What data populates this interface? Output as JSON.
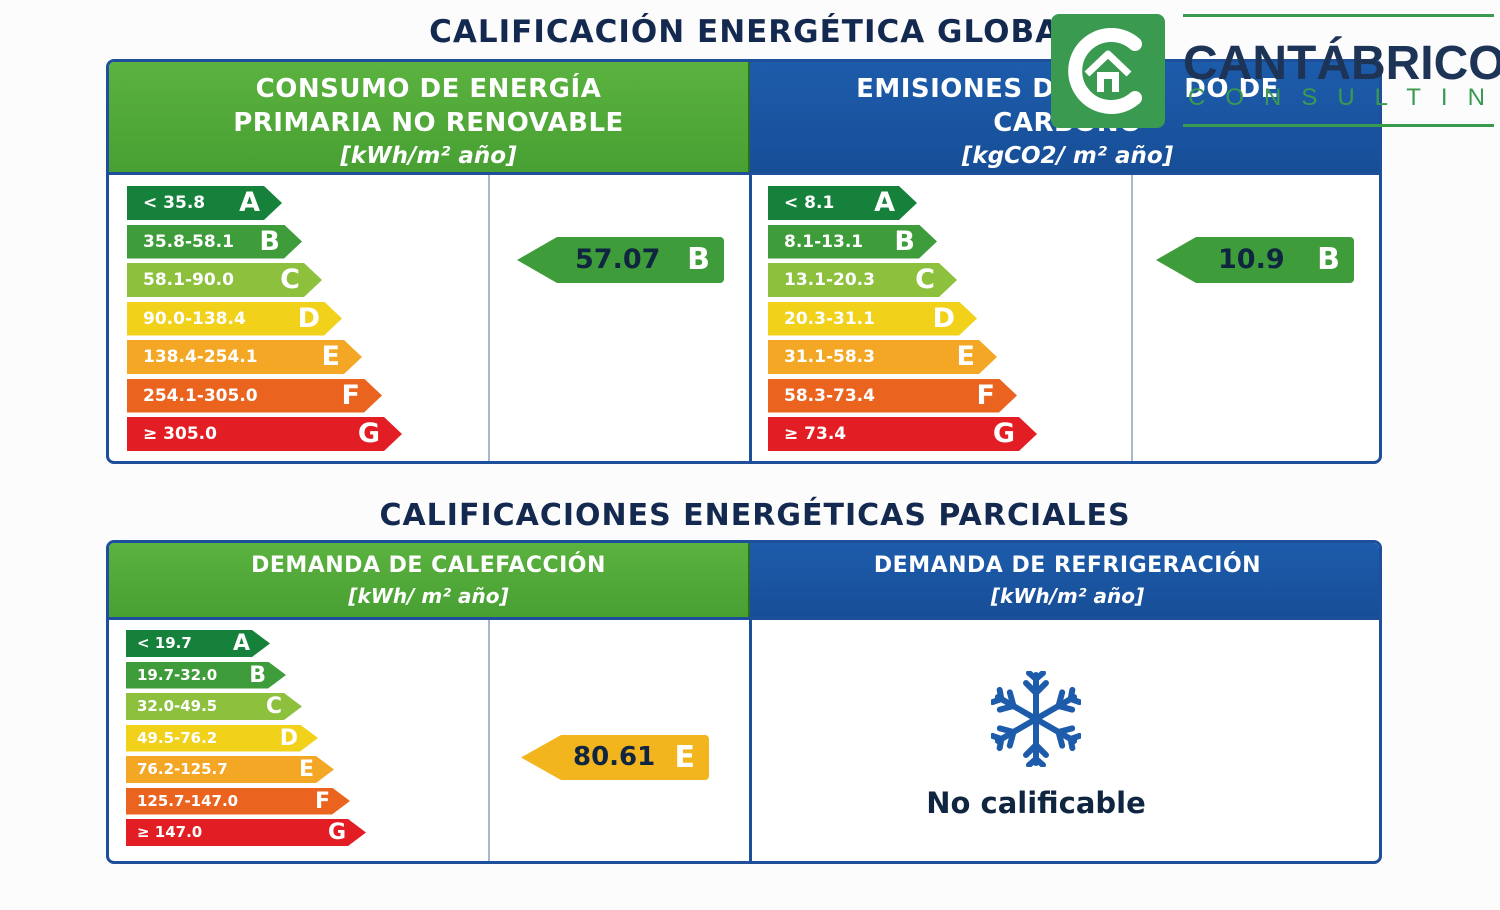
{
  "global": {
    "title": "CALIFICACIÓN ENERGÉTICA GLOBAL",
    "consumo": {
      "line1": "CONSUMO DE ENERGÍA",
      "line2": "PRIMARIA NO RENOVABLE",
      "unit": "[kWh/m² año]",
      "scale": [
        {
          "range": "< 35.8",
          "letter": "A"
        },
        {
          "range": "35.8-58.1",
          "letter": "B"
        },
        {
          "range": "58.1-90.0",
          "letter": "C"
        },
        {
          "range": "90.0-138.4",
          "letter": "D"
        },
        {
          "range": "138.4-254.1",
          "letter": "E"
        },
        {
          "range": "254.1-305.0",
          "letter": "F"
        },
        {
          "range": "≥ 305.0",
          "letter": "G"
        }
      ],
      "value": "57.07",
      "rating": "B"
    },
    "emisiones": {
      "line1": "EMISIONES D",
      "line1b": "DO DE",
      "line2": "CARBONO",
      "unit": "[kgCO2/ m² año]",
      "scale": [
        {
          "range": "< 8.1",
          "letter": "A"
        },
        {
          "range": "8.1-13.1",
          "letter": "B"
        },
        {
          "range": "13.1-20.3",
          "letter": "C"
        },
        {
          "range": "20.3-31.1",
          "letter": "D"
        },
        {
          "range": "31.1-58.3",
          "letter": "E"
        },
        {
          "range": "58.3-73.4",
          "letter": "F"
        },
        {
          "range": "≥ 73.4",
          "letter": "G"
        }
      ],
      "value": "10.9",
      "rating": "B"
    }
  },
  "partial": {
    "title": "CALIFICACIONES ENERGÉTICAS PARCIALES",
    "calefaccion": {
      "line1": "DEMANDA DE CALEFACCIÓN",
      "unit": "[kWh/ m² año]",
      "scale": [
        {
          "range": "< 19.7",
          "letter": "A"
        },
        {
          "range": "19.7-32.0",
          "letter": "B"
        },
        {
          "range": "32.0-49.5",
          "letter": "C"
        },
        {
          "range": "49.5-76.2",
          "letter": "D"
        },
        {
          "range": "76.2-125.7",
          "letter": "E"
        },
        {
          "range": "125.7-147.0",
          "letter": "F"
        },
        {
          "range": "≥ 147.0",
          "letter": "G"
        }
      ],
      "value": "80.61",
      "rating": "E"
    },
    "refrigeracion": {
      "line1": "DEMANDA DE REFRIGERACIÓN",
      "unit": "[kWh/m² año]",
      "icon": "snowflake-icon",
      "status": "No calificable"
    }
  },
  "logo": {
    "name": "CANTÁBRICO",
    "sub": "CONSULTING",
    "color": "#3a9a50"
  },
  "colors": {
    "A": "#15813a",
    "B": "#3f9c3a",
    "C": "#8cc03d",
    "D": "#f1d119",
    "E": "#f3a724",
    "F": "#ea6420",
    "G": "#e31d24"
  }
}
